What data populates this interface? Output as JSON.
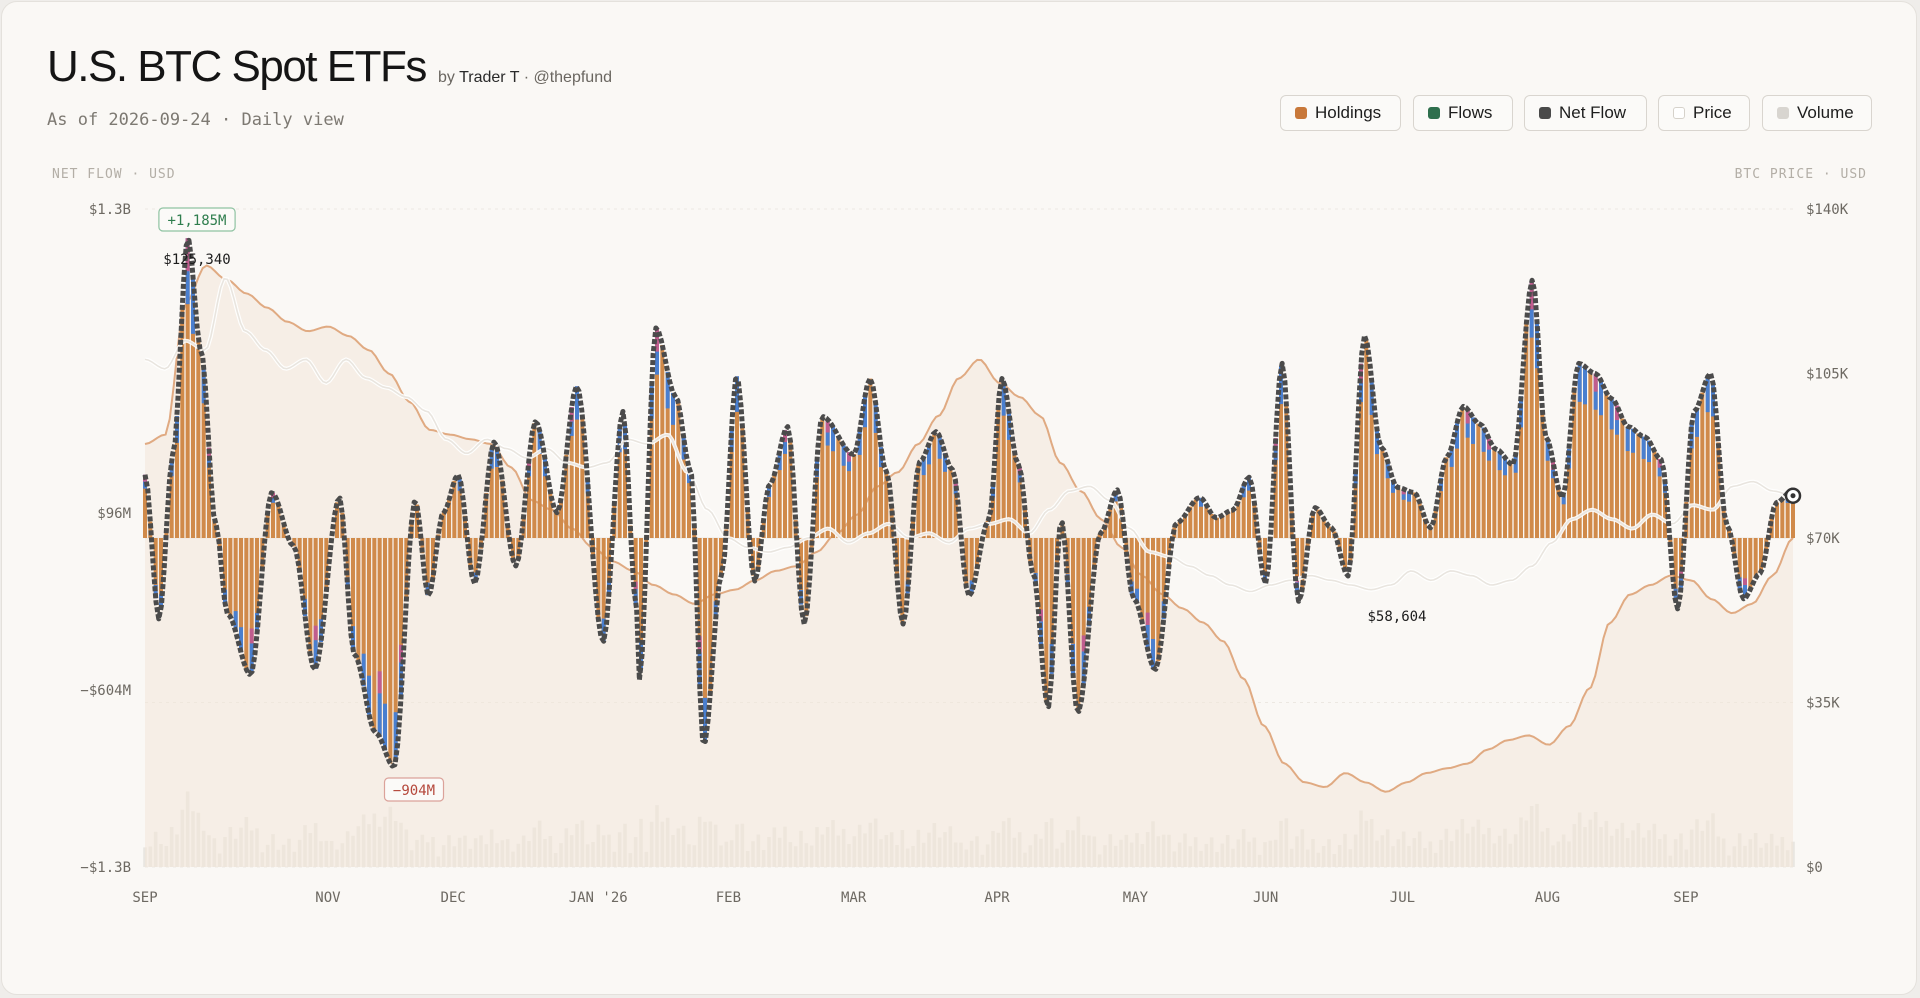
{
  "header": {
    "title": "U.S. BTC Spot ETFs",
    "by_prefix": "by",
    "author": "Trader T",
    "handle": "· @thepfund",
    "subtitle": "As of 2026-09-24 · Daily view"
  },
  "legend": [
    {
      "label": "Holdings",
      "color": "#c8783a"
    },
    {
      "label": "Flows",
      "color": "#2e6f4d"
    },
    {
      "label": "Net Flow",
      "color": "#4a4a4a"
    },
    {
      "label": "Price",
      "color": "#ffffff"
    },
    {
      "label": "Volume",
      "color": "#d8d5d0"
    }
  ],
  "axes": {
    "left_title": "NET FLOW · USD",
    "right_title": "BTC PRICE · USD"
  },
  "chart_data": {
    "type": "bar",
    "title": "U.S. BTC Spot ETFs",
    "y_left_ticks": [
      "$1.3B",
      "$96M",
      "−$604M",
      "−$1.3B"
    ],
    "y_right_ticks": [
      "$140K",
      "$105K",
      "$70K",
      "$35K",
      "$0"
    ],
    "y_left_range_musd": [
      -1300,
      1300
    ],
    "y_right_range_usd": [
      0,
      140000
    ],
    "x_ticks": [
      "SEP",
      "NOV",
      "DEC",
      "JAN '26",
      "FEB",
      "MAR",
      "APR",
      "MAY",
      "JUN",
      "JUL",
      "AUG",
      "SEP"
    ],
    "annotations": {
      "max_flow": "+1,185M",
      "min_flow": "−904M",
      "price_high": "$125,340",
      "price_low": "$58,604"
    },
    "series": [
      {
        "name": "Net Flow",
        "unit": "M USD",
        "x_pos": [
          0,
          0.0085,
          0.017,
          0.026,
          0.034,
          0.043,
          0.05,
          0.064,
          0.077,
          0.09,
          0.103,
          0.118,
          0.127,
          0.14,
          0.151,
          0.164,
          0.172,
          0.181,
          0.19,
          0.2,
          0.212,
          0.225,
          0.237,
          0.25,
          0.262,
          0.278,
          0.29,
          0.298,
          0.31,
          0.3,
          0.322,
          0.331,
          0.339,
          0.35,
          0.359,
          0.37,
          0.379,
          0.39,
          0.4,
          0.411,
          0.43,
          0.44,
          0.45,
          0.46,
          0.47,
          0.48,
          0.49,
          0.5,
          0.512,
          0.52,
          0.53,
          0.539,
          0.548,
          0.556,
          0.566,
          0.58,
          0.59,
          0.6,
          0.613,
          0.626,
          0.64,
          0.65,
          0.66,
          0.67,
          0.68,
          0.69,
          0.7,
          0.71,
          0.72,
          0.73,
          0.74,
          0.75,
          0.76,
          0.77,
          0.78,
          0.79,
          0.8,
          0.81,
          0.82,
          0.83,
          0.842,
          0.85,
          0.86,
          0.87,
          0.88,
          0.89,
          0.9,
          0.91,
          0.92,
          0.93,
          0.94,
          0.95,
          0.96,
          0.97,
          0.98,
          0.99,
          1.0
        ],
        "values": [
          250,
          -320,
          330,
          1185,
          740,
          50,
          -300,
          -540,
          180,
          -30,
          -520,
          160,
          -460,
          -770,
          -904,
          150,
          -230,
          100,
          250,
          -180,
          380,
          -110,
          460,
          100,
          600,
          -410,
          500,
          -260,
          830,
          -560,
          560,
          270,
          -820,
          -140,
          640,
          -170,
          210,
          440,
          -340,
          480,
          330,
          630,
          260,
          -340,
          300,
          420,
          270,
          -230,
          70,
          630,
          290,
          -140,
          -670,
          70,
          -690,
          20,
          190,
          -240,
          -520,
          60,
          160,
          80,
          110,
          240,
          -180,
          690,
          -250,
          120,
          40,
          -150,
          800,
          360,
          200,
          180,
          40,
          320,
          520,
          450,
          350,
          290,
          1020,
          400,
          160,
          690,
          650,
          550,
          440,
          400,
          310,
          -280,
          500,
          650,
          50,
          -240,
          -140,
          140,
          190
        ]
      },
      {
        "name": "Price",
        "unit": "USD",
        "values": [
          108000,
          106000,
          112000,
          110000,
          125340,
          114000,
          110000,
          106000,
          108000,
          103000,
          108000,
          104000,
          102000,
          100000,
          97000,
          91000,
          88000,
          91000,
          89000,
          87000,
          89000,
          86000,
          85000,
          86000,
          91000,
          90000,
          92000,
          84000,
          76000,
          70000,
          68000,
          67000,
          68000,
          70000,
          72000,
          69000,
          71000,
          73000,
          70000,
          71000,
          69000,
          72000,
          73000,
          74000,
          71000,
          76000,
          80000,
          81000,
          78000,
          72000,
          67000,
          66000,
          64000,
          62000,
          60000,
          58604,
          60000,
          61000,
          62000,
          61000,
          60000,
          59000,
          60000,
          63000,
          61000,
          63000,
          62000,
          60000,
          61000,
          64000,
          69000,
          74000,
          76000,
          74000,
          72000,
          75000,
          73000,
          77000,
          76000,
          81000,
          82000,
          80000,
          79000
        ]
      },
      {
        "name": "Holdings",
        "unit": "USD",
        "values": [
          90000,
          92000,
          120000,
          128000,
          125000,
          122000,
          119000,
          116000,
          114000,
          115000,
          113000,
          110000,
          105000,
          99000,
          93000,
          92000,
          91000,
          90000,
          85000,
          78000,
          76000,
          72000,
          68000,
          65000,
          63000,
          60000,
          58000,
          56000,
          58000,
          59000,
          61000,
          63000,
          64000,
          67000,
          71000,
          75000,
          81000,
          84000,
          90000,
          96000,
          104000,
          108000,
          103000,
          100000,
          96000,
          86000,
          80000,
          74000,
          68000,
          62000,
          58000,
          55000,
          52000,
          48000,
          40000,
          30000,
          22000,
          18000,
          17000,
          20000,
          18000,
          16000,
          18000,
          20000,
          21000,
          22000,
          25000,
          27000,
          28000,
          26000,
          30000,
          38000,
          52000,
          58000,
          60000,
          62000,
          61000,
          57000,
          54000,
          56000,
          62000,
          70000
        ]
      }
    ]
  }
}
